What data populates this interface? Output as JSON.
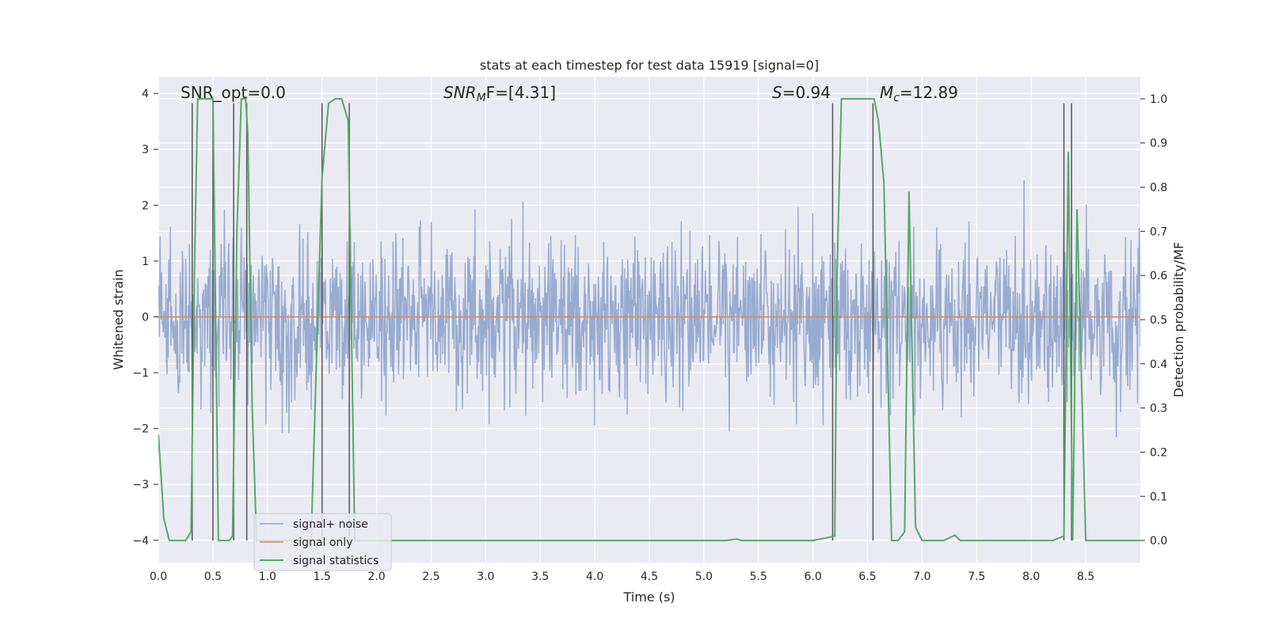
{
  "chart_data": {
    "type": "line",
    "title": "stats at each timestep for test data 15919 [signal=0]",
    "xlabel": "Time (s)",
    "ylabel": "Whitened strain",
    "ylabel_right": "Detection probability/MF",
    "xlim": [
      0.0,
      9.0
    ],
    "ylim": [
      -4.4,
      4.3
    ],
    "ylim_right": [
      -0.05,
      1.05
    ],
    "x_ticks": [
      0.0,
      0.5,
      1.0,
      1.5,
      2.0,
      2.5,
      3.0,
      3.5,
      4.0,
      4.5,
      5.0,
      5.5,
      6.0,
      6.5,
      7.0,
      7.5,
      8.0,
      8.5
    ],
    "x_tick_labels": [
      "0.0",
      "0.5",
      "1.0",
      "1.5",
      "2.0",
      "2.5",
      "3.0",
      "3.5",
      "4.0",
      "4.5",
      "5.0",
      "5.5",
      "6.0",
      "6.5",
      "7.0",
      "7.5",
      "8.0",
      "8.5"
    ],
    "y_ticks": [
      4,
      3,
      2,
      1,
      0,
      -1,
      -2,
      -3,
      -4
    ],
    "y_tick_labels": [
      "4",
      "3",
      "2",
      "1",
      "0",
      "−1",
      "−2",
      "−3",
      "−4"
    ],
    "y_right_ticks": [
      1.0,
      0.9,
      0.8,
      0.7,
      0.6,
      0.5,
      0.4,
      0.3,
      0.2,
      0.1,
      0.0
    ],
    "y_right_tick_labels": [
      "1.0",
      "0.9",
      "0.8",
      "0.7",
      "0.6",
      "0.5",
      "0.4",
      "0.3",
      "0.2",
      "0.1",
      "0.0"
    ],
    "grid": true,
    "legend": {
      "placement": "lower-left",
      "entries": [
        "signal+ noise",
        "signal only",
        "signal statistics"
      ]
    },
    "annotations": {
      "snr_opt": "SNR_opt=0.0",
      "snr_mf_base": "SNR",
      "snr_mf_sub": "M",
      "snr_mf_rest": "F=[4.31]",
      "s_var": "S",
      "s_val": "=0.94",
      "mc_var": "M",
      "mc_sub": "c",
      "mc_val": "=12.89"
    },
    "colors": {
      "noise": "#8fa4cc",
      "signal": "#dd8452",
      "stats": "#55a868",
      "marker": "#555555",
      "background": "#eaeaf2",
      "grid": "#ffffff"
    },
    "noise": {
      "amplitude_sigma": 0.72,
      "samples": 1800,
      "seed": 15919
    },
    "series": [
      {
        "name": "signal statistics",
        "axis": "right",
        "x": [
          0.0,
          0.05,
          0.1,
          0.25,
          0.3,
          0.33,
          0.36,
          0.48,
          0.5,
          0.55,
          0.6,
          0.65,
          0.68,
          0.72,
          0.76,
          0.8,
          0.82,
          0.86,
          0.9,
          1.0,
          1.4,
          1.46,
          1.5,
          1.56,
          1.62,
          1.68,
          1.74,
          1.8,
          2.0,
          5.2,
          5.3,
          5.35,
          6.0,
          6.2,
          6.22,
          6.26,
          6.32,
          6.56,
          6.6,
          6.65,
          6.72,
          6.78,
          6.84,
          6.88,
          6.94,
          7.0,
          7.2,
          7.3,
          7.35,
          7.5,
          8.2,
          8.3,
          8.34,
          8.38,
          8.42,
          8.5,
          9.0
        ],
        "y": [
          0.24,
          0.05,
          0.0,
          0.0,
          0.02,
          0.6,
          1.0,
          1.0,
          1.0,
          0.0,
          0.0,
          0.0,
          0.01,
          0.7,
          1.0,
          1.0,
          0.92,
          0.3,
          0.0,
          0.0,
          0.0,
          0.5,
          0.82,
          0.99,
          1.0,
          1.0,
          0.95,
          0.0,
          0.0,
          0.0,
          0.003,
          0.0,
          0.0,
          0.01,
          0.6,
          1.0,
          1.0,
          1.0,
          0.95,
          0.81,
          0.0,
          0.0,
          0.02,
          0.79,
          0.03,
          0.0,
          0.0,
          0.012,
          0.0,
          0.0,
          0.0,
          0.01,
          0.88,
          0.0,
          0.75,
          0.0,
          0.0
        ]
      },
      {
        "name": "signal only",
        "axis": "left",
        "x": [
          0.0,
          9.0
        ],
        "y": [
          0.0,
          0.0
        ]
      }
    ],
    "markers": {
      "x": [
        0.31,
        0.5,
        0.69,
        0.81,
        1.5,
        1.75,
        6.18,
        6.55,
        8.3,
        8.37
      ],
      "y_top_right": [
        0.99,
        0.99,
        0.99,
        0.99,
        0.99,
        0.99,
        0.99,
        0.99,
        0.99,
        0.99
      ]
    }
  }
}
